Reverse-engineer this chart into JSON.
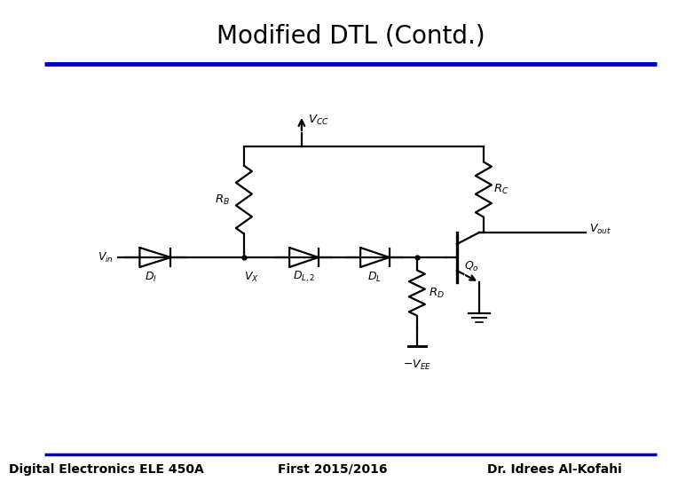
{
  "title": "Modified DTL (Contd.)",
  "title_fontsize": 20,
  "footer_left": "Digital Electronics ELE 450A",
  "footer_center": "First 2015/2016",
  "footer_right": "Dr. Idrees Al-Kofahi",
  "footer_fontsize": 10,
  "blue_line_color": "#0000BB",
  "background_color": "#FFFFFF",
  "circuit_color": "#000000",
  "lw": 1.6
}
